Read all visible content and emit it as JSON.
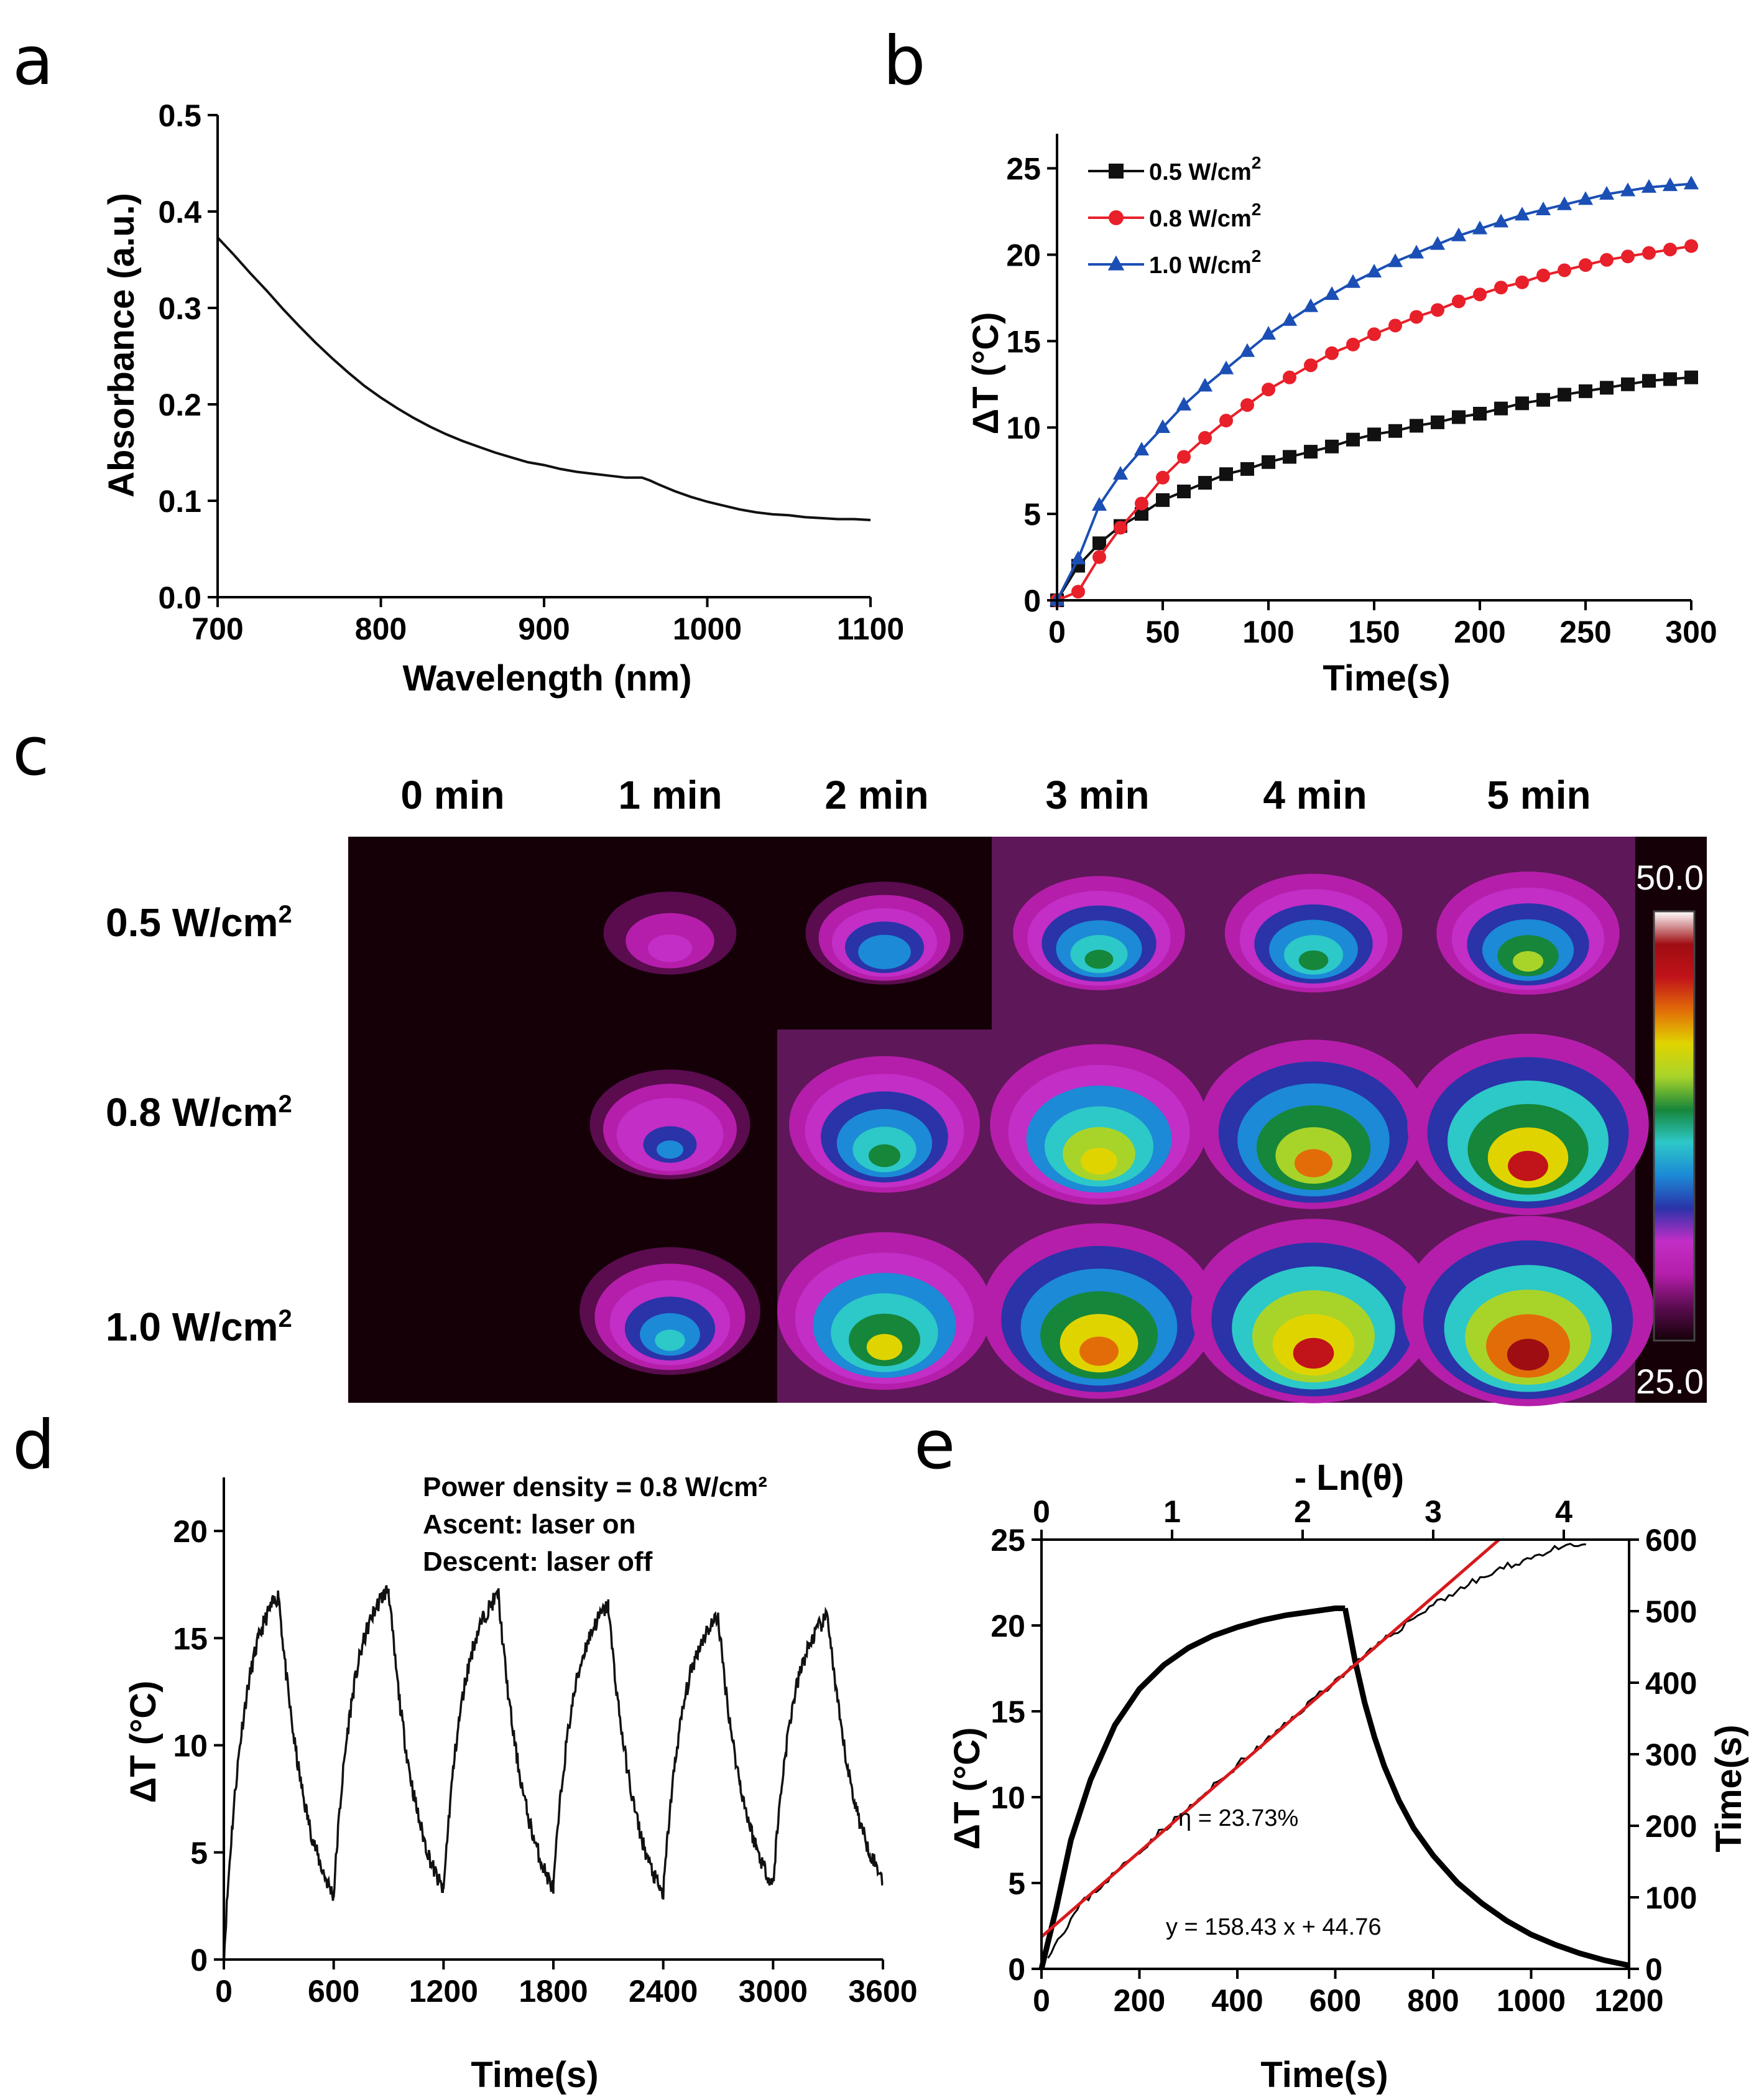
{
  "panel_letters": [
    "a",
    "b",
    "c",
    "d",
    "e"
  ],
  "chart_data": [
    {
      "id": "a",
      "type": "line",
      "title": "",
      "xlabel": "Wavelength (nm)",
      "ylabel": "Absorbance (a.u.)",
      "xlim": [
        700,
        1100
      ],
      "ylim": [
        0.0,
        0.5
      ],
      "xticks": [
        700,
        800,
        900,
        1000,
        1100
      ],
      "xtick_labels": [
        "700",
        "800",
        "900",
        "1000",
        "1100"
      ],
      "yticks": [
        0.0,
        0.1,
        0.2,
        0.3,
        0.4,
        0.5
      ],
      "ytick_labels": [
        "0.0",
        "0.1",
        "0.2",
        "0.3",
        "0.4",
        "0.5"
      ],
      "series": [
        {
          "name": "absorbance",
          "color": "#111111",
          "x": [
            700,
            710,
            720,
            730,
            740,
            750,
            760,
            770,
            780,
            790,
            800,
            810,
            820,
            830,
            840,
            850,
            860,
            870,
            880,
            890,
            900,
            910,
            920,
            930,
            940,
            950,
            955,
            960,
            965,
            970,
            980,
            990,
            1000,
            1010,
            1020,
            1030,
            1040,
            1050,
            1060,
            1070,
            1080,
            1090,
            1100
          ],
          "y": [
            0.373,
            0.355,
            0.336,
            0.318,
            0.299,
            0.281,
            0.264,
            0.248,
            0.233,
            0.219,
            0.207,
            0.196,
            0.186,
            0.177,
            0.169,
            0.162,
            0.156,
            0.15,
            0.145,
            0.14,
            0.137,
            0.133,
            0.13,
            0.128,
            0.126,
            0.124,
            0.124,
            0.124,
            0.121,
            0.117,
            0.11,
            0.104,
            0.099,
            0.095,
            0.091,
            0.088,
            0.086,
            0.085,
            0.083,
            0.082,
            0.081,
            0.081,
            0.08
          ]
        }
      ]
    },
    {
      "id": "b",
      "type": "line",
      "title": "",
      "xlabel": "Time(s)",
      "ylabel": "ΔT (°C)",
      "xlim": [
        0,
        300
      ],
      "ylim": [
        0,
        27
      ],
      "xticks": [
        0,
        50,
        100,
        150,
        200,
        250,
        300
      ],
      "xtick_labels": [
        "0",
        "50",
        "100",
        "150",
        "200",
        "250",
        "300"
      ],
      "yticks": [
        0,
        5,
        10,
        15,
        20,
        25
      ],
      "ytick_labels": [
        "0",
        "5",
        "10",
        "15",
        "20",
        "25"
      ],
      "x": [
        0,
        10,
        20,
        30,
        40,
        50,
        60,
        70,
        80,
        90,
        100,
        110,
        120,
        130,
        140,
        150,
        160,
        170,
        180,
        190,
        200,
        210,
        220,
        230,
        240,
        250,
        260,
        270,
        280,
        290,
        300
      ],
      "series": [
        {
          "name": "0.5 W/cm",
          "sup": "2",
          "color": "#111111",
          "marker": "square",
          "values": [
            0.0,
            2.0,
            3.3,
            4.3,
            5.0,
            5.8,
            6.3,
            6.8,
            7.3,
            7.6,
            8.0,
            8.3,
            8.6,
            8.9,
            9.3,
            9.6,
            9.8,
            10.1,
            10.3,
            10.6,
            10.8,
            11.1,
            11.4,
            11.6,
            11.9,
            12.1,
            12.3,
            12.5,
            12.7,
            12.8,
            12.9
          ]
        },
        {
          "name": "0.8 W/cm",
          "sup": "2",
          "color": "#e8202a",
          "marker": "circle",
          "values": [
            0.0,
            0.5,
            2.5,
            4.2,
            5.6,
            7.1,
            8.3,
            9.4,
            10.4,
            11.3,
            12.2,
            12.9,
            13.6,
            14.3,
            14.8,
            15.4,
            15.9,
            16.4,
            16.8,
            17.3,
            17.7,
            18.1,
            18.4,
            18.8,
            19.1,
            19.4,
            19.7,
            19.9,
            20.1,
            20.3,
            20.5
          ]
        },
        {
          "name": "1.0 W/cm",
          "sup": "2",
          "color": "#1b4fb5",
          "marker": "triangle",
          "values": [
            0.0,
            2.4,
            5.5,
            7.3,
            8.7,
            10.0,
            11.3,
            12.4,
            13.4,
            14.4,
            15.4,
            16.2,
            17.0,
            17.7,
            18.4,
            19.0,
            19.6,
            20.1,
            20.6,
            21.1,
            21.5,
            21.9,
            22.3,
            22.6,
            22.9,
            23.2,
            23.5,
            23.7,
            23.9,
            24.0,
            24.1
          ]
        }
      ],
      "legend": "top-left"
    },
    {
      "id": "c",
      "type": "heatmap",
      "column_labels": [
        "0 min",
        "1 min",
        "2 min",
        "3 min",
        "4 min",
        "5 min"
      ],
      "row_labels": [
        {
          "text": "0.5 W/cm",
          "sup": "2"
        },
        {
          "text": "0.8 W/cm",
          "sup": "2"
        },
        {
          "text": "1.0 W/cm",
          "sup": "2"
        }
      ],
      "colorbar_max": "50.0",
      "colorbar_min": "25.0",
      "peak_temperature_c": [
        [
          25.0,
          31.0,
          35.5,
          38.0,
          39.0,
          40.0
        ],
        [
          25.0,
          34.0,
          38.5,
          42.5,
          44.0,
          46.0
        ],
        [
          25.0,
          37.0,
          42.0,
          45.0,
          46.5,
          47.5
        ]
      ],
      "colorbar_stops": [
        "#150008",
        "#5a0c4f",
        "#b51eaa",
        "#c22ec6",
        "#2a33a8",
        "#1c8ad6",
        "#2dc8c8",
        "#16863a",
        "#a8d42a",
        "#e0d400",
        "#e26d08",
        "#c1131a",
        "#9e0d12",
        "#ffffff"
      ]
    },
    {
      "id": "d",
      "type": "line",
      "title": "",
      "xlabel": "Time(s)",
      "ylabel": "ΔT (°C)",
      "xlim": [
        0,
        3600
      ],
      "ylim": [
        0,
        22.5
      ],
      "xticks": [
        0,
        600,
        1200,
        1800,
        2400,
        3000,
        3600
      ],
      "xtick_labels": [
        "0",
        "600",
        "1200",
        "1800",
        "2400",
        "3000",
        "3600"
      ],
      "yticks": [
        0,
        5,
        10,
        15,
        20
      ],
      "ytick_labels": [
        "0",
        "5",
        "10",
        "15",
        "20"
      ],
      "cycles": [
        {
          "start": 0,
          "peak_time": 300,
          "peak": 17.0,
          "trough_time": 600,
          "trough": 3.0
        },
        {
          "start": 600,
          "peak_time": 900,
          "peak": 17.3,
          "trough_time": 1200,
          "trough": 3.2
        },
        {
          "start": 1200,
          "peak_time": 1500,
          "peak": 17.0,
          "trough_time": 1800,
          "trough": 3.3
        },
        {
          "start": 1800,
          "peak_time": 2100,
          "peak": 16.5,
          "trough_time": 2400,
          "trough": 3.0
        },
        {
          "start": 2400,
          "peak_time": 2700,
          "peak": 16.0,
          "trough_time": 3000,
          "trough": 3.5
        },
        {
          "start": 3000,
          "peak_time": 3300,
          "peak": 16.0,
          "trough_time": 3600,
          "trough": 3.8
        }
      ],
      "annotations": [
        "Power density = 0.8 W/cm²",
        "Ascent: laser on",
        "Descent: laser off"
      ]
    },
    {
      "id": "e",
      "type": "line",
      "title": "- Ln(θ)",
      "xlabel": "Time(s)",
      "ylabel": "ΔT (°C)",
      "y2label": "Time(s)",
      "xlim": [
        0,
        1200
      ],
      "ylim": [
        0,
        25
      ],
      "x2lim": [
        0,
        4.5
      ],
      "y2lim": [
        0,
        600
      ],
      "xticks": [
        0,
        200,
        400,
        600,
        800,
        1000,
        1200
      ],
      "xtick_labels": [
        "0",
        "200",
        "400",
        "600",
        "800",
        "1000",
        "1200"
      ],
      "yticks": [
        0,
        5,
        10,
        15,
        20,
        25
      ],
      "ytick_labels": [
        "0",
        "5",
        "10",
        "15",
        "20",
        "25"
      ],
      "x2ticks": [
        0,
        1,
        2,
        3,
        4
      ],
      "x2tick_labels": [
        "0",
        "1",
        "2",
        "3",
        "4"
      ],
      "y2ticks": [
        0,
        100,
        200,
        300,
        400,
        500,
        600
      ],
      "y2tick_labels": [
        "0",
        "100",
        "200",
        "300",
        "400",
        "500",
        "600"
      ],
      "heating_curve": {
        "x": [
          0,
          30,
          60,
          100,
          150,
          200,
          250,
          300,
          350,
          400,
          450,
          500,
          550,
          600,
          620
        ],
        "y": [
          0,
          3.5,
          7.5,
          11.0,
          14.2,
          16.3,
          17.7,
          18.7,
          19.4,
          19.9,
          20.3,
          20.6,
          20.8,
          21.0,
          21.0
        ]
      },
      "cooling_curve": {
        "x": [
          620,
          640,
          660,
          680,
          700,
          730,
          760,
          800,
          850,
          900,
          950,
          1000,
          1050,
          1100,
          1150,
          1200
        ],
        "y": [
          21.0,
          18.0,
          15.5,
          13.5,
          11.8,
          9.8,
          8.2,
          6.6,
          5.0,
          3.8,
          2.8,
          2.0,
          1.4,
          0.9,
          0.5,
          0.2
        ]
      },
      "linear_data": {
        "x": [
          0.05,
          0.3,
          0.6,
          0.9,
          1.2,
          1.5,
          1.8,
          2.1,
          2.4,
          2.7,
          3.0,
          3.3,
          3.6,
          3.9,
          4.2
        ],
        "y": [
          20,
          90,
          140,
          190,
          235,
          285,
          330,
          380,
          425,
          470,
          510,
          540,
          565,
          585,
          595
        ]
      },
      "fit": {
        "slope": 158.43,
        "intercept": 44.76,
        "color": "#d7191c"
      },
      "annotations": [
        "η = 23.73%",
        "y = 158.43 x + 44.76"
      ]
    }
  ]
}
